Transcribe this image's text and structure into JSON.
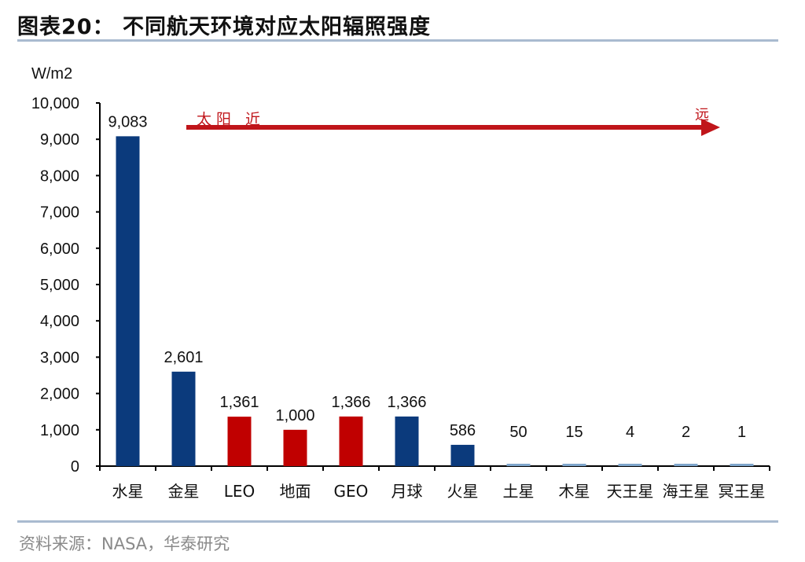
{
  "title": "图表20：  不同航天环境对应太阳辐照强度",
  "source": "资料来源：NASA，华泰研究",
  "chart_data": {
    "type": "bar",
    "ylabel": "W/m2",
    "ylim": [
      0,
      10000
    ],
    "yticks": [
      "0",
      "1,000",
      "2,000",
      "3,000",
      "4,000",
      "5,000",
      "6,000",
      "7,000",
      "8,000",
      "9,000",
      "10,000"
    ],
    "categories": [
      "水星",
      "金星",
      "LEO",
      "地面",
      "GEO",
      "月球",
      "火星",
      "土星",
      "木星",
      "天王星",
      "海王星",
      "冥王星"
    ],
    "values": [
      9083,
      2601,
      1361,
      1000,
      1366,
      1366,
      586,
      50,
      15,
      4,
      2,
      1
    ],
    "data_labels": [
      "9,083",
      "2,601",
      "1,361",
      "1,000",
      "1,366",
      "1,366",
      "586",
      "50",
      "15",
      "4",
      "2",
      "1"
    ],
    "bar_colors": [
      "#0b3a7c",
      "#0b3a7c",
      "#c00000",
      "#c00000",
      "#c00000",
      "#0b3a7c",
      "#0b3a7c",
      "#0b3a7c",
      "#0b3a7c",
      "#0b3a7c",
      "#0b3a7c",
      "#0b3a7c"
    ],
    "grid": false,
    "annotation": {
      "left": "太阳 近",
      "right": "远",
      "color": "#c0151a"
    }
  }
}
